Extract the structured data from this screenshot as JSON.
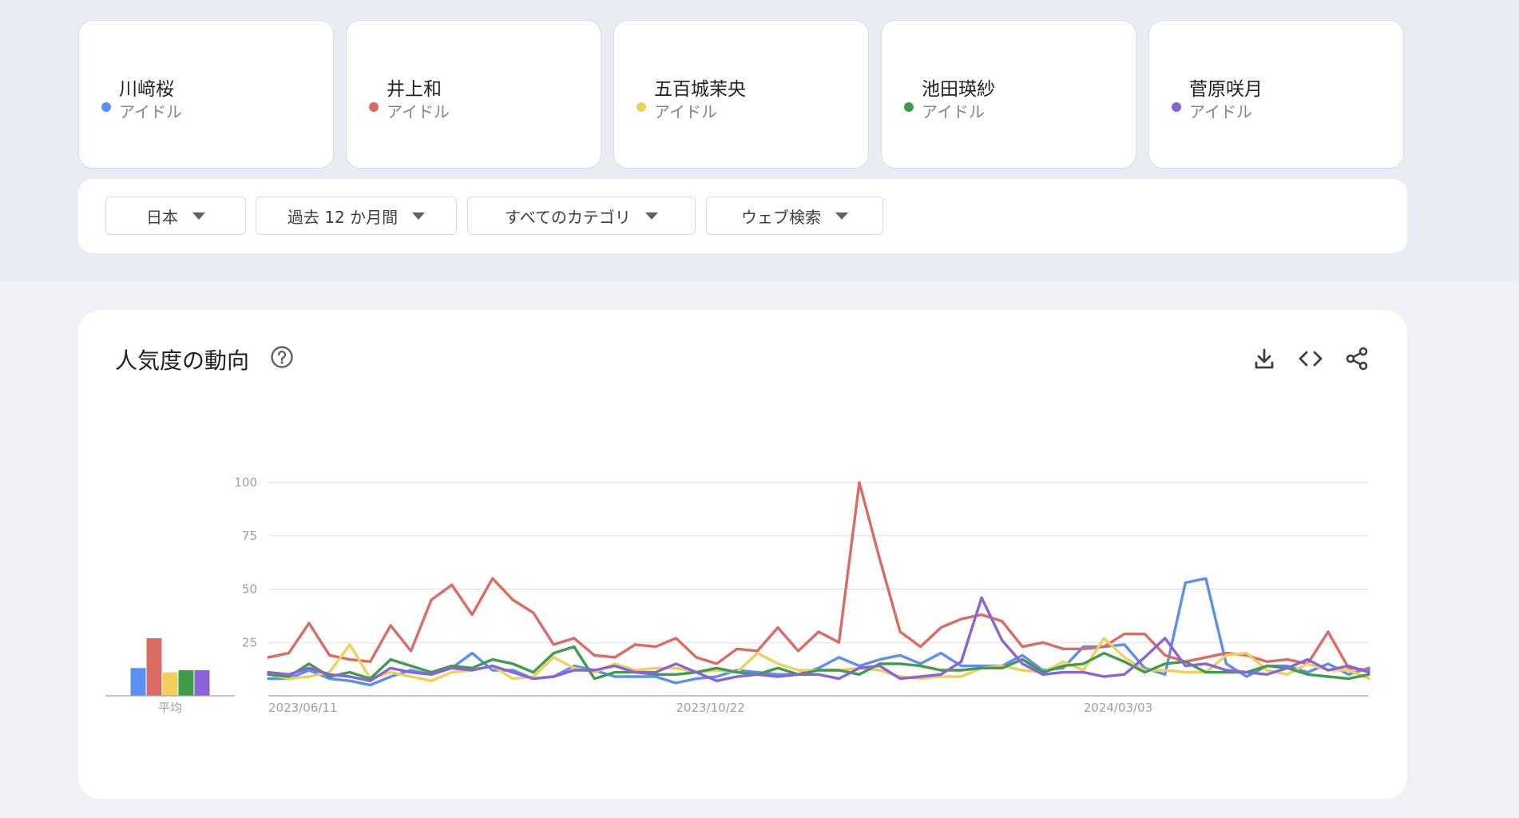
{
  "terms": [
    {
      "name": "川﨑桜",
      "category": "アイドル",
      "color": "#5b8ff0"
    },
    {
      "name": "井上和",
      "category": "アイドル",
      "color": "#da6c63"
    },
    {
      "name": "五百城茉央",
      "category": "アイドル",
      "color": "#f0cf5c"
    },
    {
      "name": "池田瑛紗",
      "category": "アイドル",
      "color": "#3f9c4b"
    },
    {
      "name": "菅原咲月",
      "category": "アイドル",
      "color": "#8a63d6"
    }
  ],
  "filters": {
    "region": "日本",
    "period": "過去 12 か月間",
    "category": "すべてのカテゴリ",
    "search_type": "ウェブ検索"
  },
  "chart_section": {
    "title": "人気度の動向",
    "icons": [
      "help-icon",
      "download-icon",
      "embed-code-icon",
      "share-icon"
    ]
  },
  "chart_data": {
    "type": "line",
    "title": "",
    "xlabel": "",
    "ylabel": "",
    "ylim": [
      0,
      100
    ],
    "yticks": [
      25,
      50,
      75,
      100
    ],
    "xtick_labels": [
      "2023/06/11",
      "2023/10/22",
      "2024/03/03"
    ],
    "xtick_indices": [
      0,
      20,
      40
    ],
    "avg_label": "平均",
    "averages": [
      13,
      27,
      11,
      12,
      12
    ],
    "series": [
      {
        "name": "川﨑桜",
        "color": "#5b8ff0",
        "values": [
          8,
          8,
          12,
          8,
          7,
          5,
          9,
          12,
          10,
          13,
          20,
          12,
          12,
          8,
          9,
          14,
          12,
          9,
          9,
          9,
          6,
          8,
          9,
          12,
          11,
          10,
          10,
          13,
          18,
          14,
          17,
          19,
          15,
          20,
          14,
          14,
          14,
          19,
          12,
          13,
          23,
          23,
          24,
          13,
          10,
          53,
          55,
          15,
          9,
          14,
          14,
          11,
          15,
          10,
          13
        ]
      },
      {
        "name": "井上和",
        "color": "#da6c63",
        "values": [
          18,
          20,
          34,
          19,
          17,
          16,
          33,
          21,
          45,
          52,
          38,
          55,
          45,
          39,
          24,
          27,
          19,
          18,
          24,
          23,
          27,
          18,
          15,
          22,
          21,
          32,
          21,
          30,
          25,
          100,
          64,
          30,
          23,
          32,
          36,
          38,
          35,
          23,
          25,
          22,
          22,
          23,
          29,
          29,
          19,
          16,
          18,
          20,
          19,
          16,
          17,
          15,
          30,
          13,
          12
        ]
      },
      {
        "name": "五百城茉央",
        "color": "#f0cf5c",
        "values": [
          10,
          8,
          9,
          11,
          24,
          8,
          11,
          9,
          7,
          11,
          12,
          14,
          8,
          9,
          18,
          13,
          11,
          15,
          12,
          13,
          13,
          11,
          12,
          11,
          20,
          15,
          12,
          12,
          12,
          13,
          12,
          9,
          8,
          9,
          9,
          13,
          14,
          12,
          11,
          16,
          12,
          27,
          18,
          12,
          12,
          11,
          11,
          19,
          20,
          12,
          10,
          15,
          12,
          12,
          8
        ]
      },
      {
        "name": "池田瑛紗",
        "color": "#3f9c4b",
        "values": [
          10,
          9,
          15,
          9,
          11,
          8,
          17,
          14,
          11,
          14,
          13,
          17,
          15,
          11,
          20,
          23,
          8,
          11,
          11,
          10,
          10,
          11,
          13,
          11,
          10,
          13,
          10,
          12,
          12,
          10,
          15,
          15,
          14,
          12,
          12,
          13,
          13,
          17,
          11,
          14,
          15,
          20,
          16,
          11,
          15,
          16,
          11,
          11,
          11,
          14,
          13,
          10,
          9,
          8,
          10
        ]
      },
      {
        "name": "菅原咲月",
        "color": "#8a63d6",
        "values": [
          11,
          10,
          13,
          10,
          9,
          7,
          13,
          11,
          10,
          13,
          12,
          14,
          11,
          8,
          9,
          12,
          12,
          14,
          11,
          11,
          15,
          11,
          7,
          9,
          10,
          9,
          10,
          10,
          8,
          13,
          14,
          8,
          9,
          10,
          16,
          46,
          26,
          15,
          10,
          11,
          11,
          9,
          10,
          18,
          27,
          14,
          15,
          12,
          11,
          10,
          13,
          17,
          12,
          14,
          11
        ]
      }
    ]
  }
}
